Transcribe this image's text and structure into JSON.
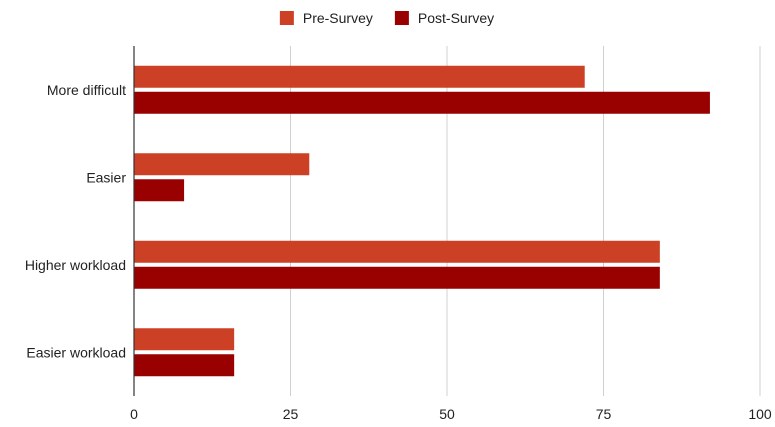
{
  "chart_data": {
    "type": "bar",
    "orientation": "horizontal",
    "categories": [
      "More difficult",
      "Easier",
      "Higher workload",
      "Easier workload"
    ],
    "series": [
      {
        "name": "Pre-Survey",
        "color": "#cc4125",
        "values": [
          72,
          28,
          84,
          16
        ]
      },
      {
        "name": "Post-Survey",
        "color": "#990000",
        "values": [
          92,
          8,
          84,
          16
        ]
      }
    ],
    "xlim": [
      0,
      100
    ],
    "xticks": [
      0,
      25,
      50,
      75,
      100
    ],
    "grid": true,
    "legend": "top-center",
    "title": "",
    "xlabel": "",
    "ylabel": ""
  }
}
